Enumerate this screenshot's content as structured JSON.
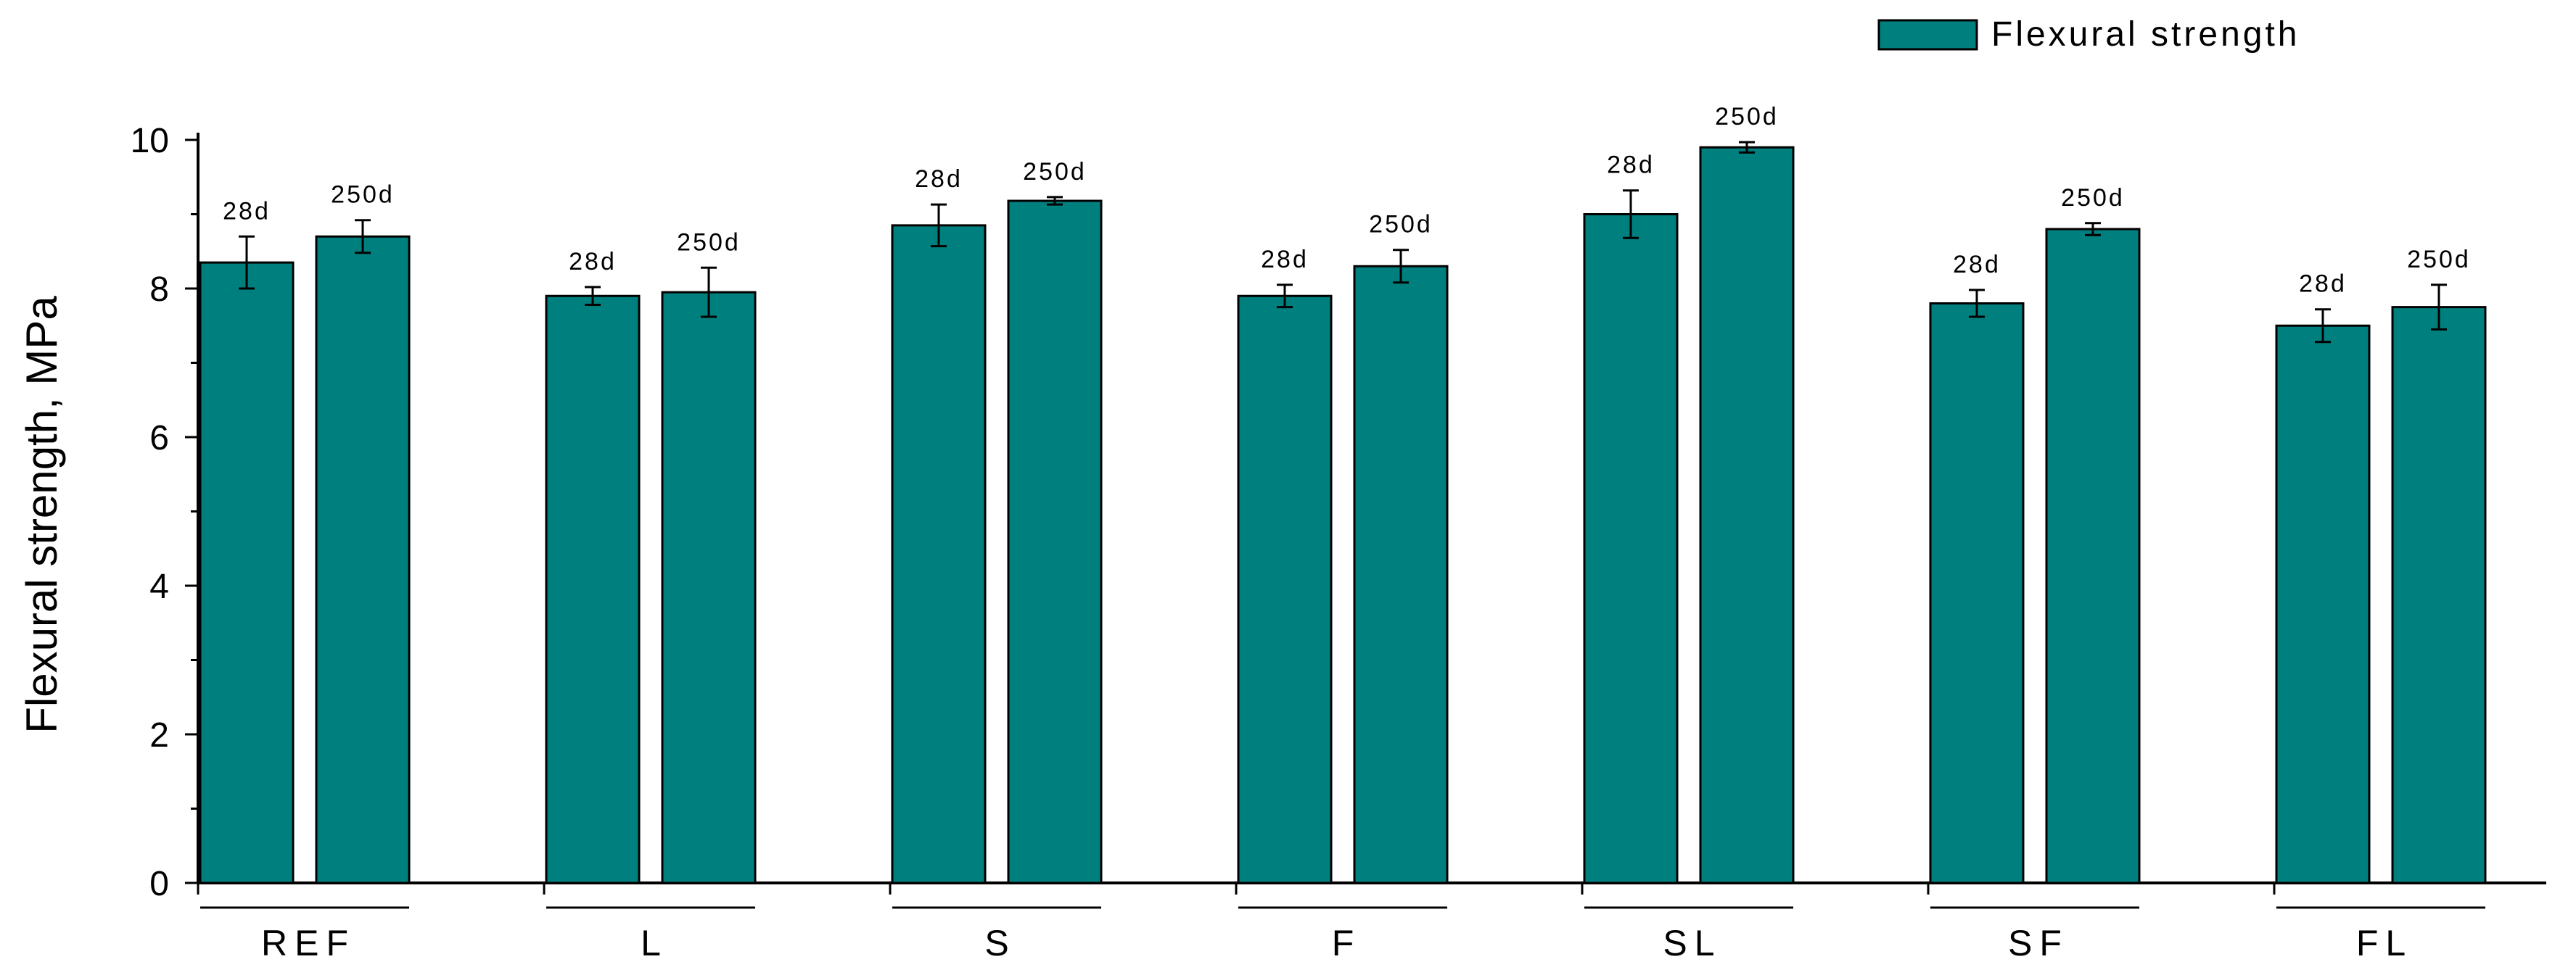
{
  "chart_data": {
    "type": "bar",
    "title": "",
    "xlabel": "",
    "ylabel": "Flexural strength, MPa",
    "ylim": [
      0,
      10
    ],
    "yticks": [
      0,
      2,
      4,
      6,
      8,
      10
    ],
    "categories": [
      "REF",
      "L",
      "S",
      "F",
      "SL",
      "SF",
      "FL"
    ],
    "bar_labels": [
      "28d",
      "250d"
    ],
    "series": [
      {
        "name": "Flexural strength",
        "ages": [
          "28d",
          "250d"
        ]
      }
    ],
    "groups": [
      {
        "label": "REF",
        "values": [
          8.35,
          8.7
        ],
        "errors": [
          0.35,
          0.22
        ]
      },
      {
        "label": "L",
        "values": [
          7.9,
          7.95
        ],
        "errors": [
          0.12,
          0.33
        ]
      },
      {
        "label": "S",
        "values": [
          8.85,
          9.18
        ],
        "errors": [
          0.28,
          0.05
        ]
      },
      {
        "label": "F",
        "values": [
          7.9,
          8.3
        ],
        "errors": [
          0.15,
          0.22
        ]
      },
      {
        "label": "SL",
        "values": [
          9.0,
          9.9
        ],
        "errors": [
          0.32,
          0.07
        ]
      },
      {
        "label": "SF",
        "values": [
          7.8,
          8.8
        ],
        "errors": [
          0.18,
          0.08
        ]
      },
      {
        "label": "FL",
        "values": [
          7.5,
          7.75
        ],
        "errors": [
          0.22,
          0.3
        ]
      }
    ],
    "bar_color": "#007f7f",
    "legend": {
      "label": "Flexural strength",
      "placement": "top-right"
    },
    "grid": false
  }
}
